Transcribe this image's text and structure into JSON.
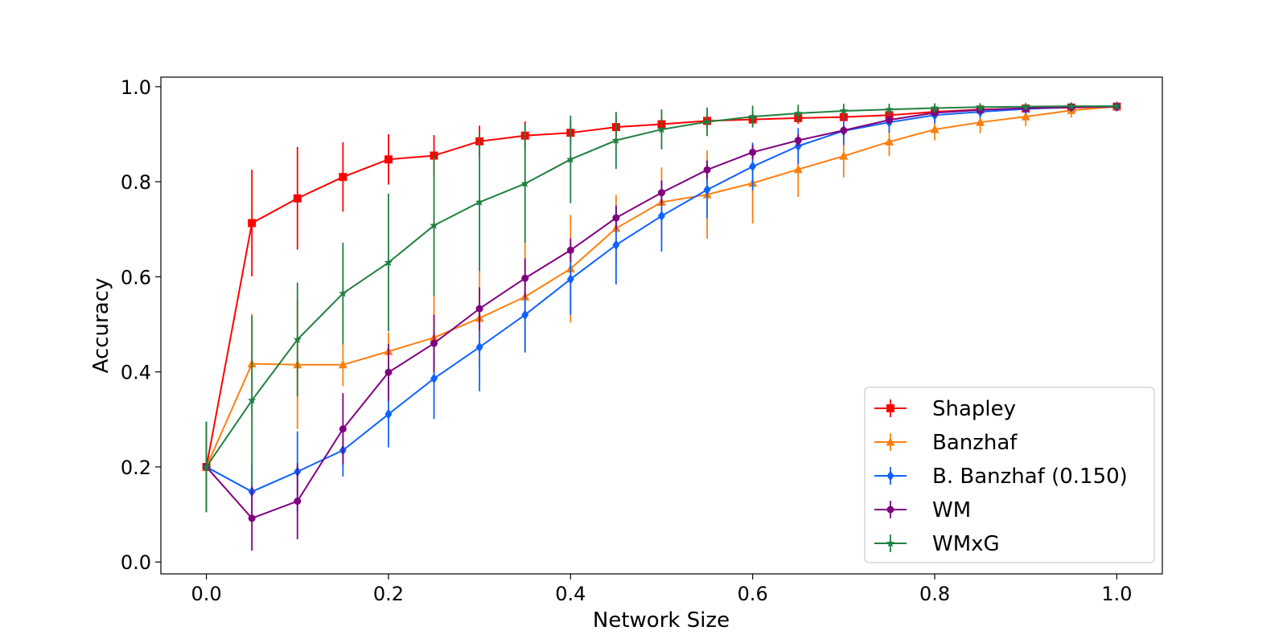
{
  "chart_data": {
    "type": "line",
    "title": "",
    "xlabel": "Network Size",
    "ylabel": "Accuracy",
    "xlim": [
      -0.05,
      1.05
    ],
    "ylim": [
      -0.025,
      1.02
    ],
    "xticks": [
      0.0,
      0.2,
      0.4,
      0.6,
      0.8,
      1.0
    ],
    "xtick_labels": [
      "0.0",
      "0.2",
      "0.4",
      "0.6",
      "0.8",
      "1.0"
    ],
    "yticks": [
      0.0,
      0.2,
      0.4,
      0.6,
      0.8,
      1.0
    ],
    "ytick_labels": [
      "0.0",
      "0.2",
      "0.4",
      "0.6",
      "0.8",
      "1.0"
    ],
    "grid": false,
    "legend_position": "lower-right",
    "x": [
      0.0,
      0.05,
      0.1,
      0.15,
      0.2,
      0.25,
      0.3,
      0.35,
      0.4,
      0.45,
      0.5,
      0.55,
      0.6,
      0.65,
      0.7,
      0.75,
      0.8,
      0.85,
      0.9,
      0.95,
      1.0
    ],
    "series": [
      {
        "name": "Shapley",
        "color": "#ff0000",
        "marker": "square",
        "values": [
          0.2,
          0.713,
          0.765,
          0.81,
          0.847,
          0.855,
          0.885,
          0.897,
          0.903,
          0.915,
          0.921,
          0.928,
          0.931,
          0.934,
          0.936,
          0.94,
          0.947,
          0.952,
          0.954,
          0.956,
          0.958
        ],
        "errors": [
          0.095,
          0.112,
          0.108,
          0.073,
          0.053,
          0.043,
          0.033,
          0.03,
          0.023,
          0.02,
          0.017,
          0.015,
          0.013,
          0.012,
          0.01,
          0.01,
          0.008,
          0.007,
          0.006,
          0.005,
          0.004
        ]
      },
      {
        "name": "Banzhaf",
        "color": "#ff7f0e",
        "marker": "triangle",
        "values": [
          0.2,
          0.417,
          0.415,
          0.415,
          0.443,
          0.472,
          0.513,
          0.558,
          0.617,
          0.702,
          0.757,
          0.773,
          0.797,
          0.826,
          0.854,
          0.884,
          0.91,
          0.925,
          0.937,
          0.95,
          0.958
        ],
        "errors": [
          0.095,
          0.105,
          0.135,
          0.045,
          0.04,
          0.09,
          0.1,
          0.118,
          0.113,
          0.07,
          0.073,
          0.093,
          0.085,
          0.058,
          0.045,
          0.03,
          0.023,
          0.023,
          0.02,
          0.015,
          0.01
        ]
      },
      {
        "name": "B. Banzhaf (0.150)",
        "color": "#0f62fe",
        "marker": "diamond",
        "values": [
          0.2,
          0.148,
          0.19,
          0.235,
          0.311,
          0.386,
          0.452,
          0.52,
          0.595,
          0.667,
          0.728,
          0.783,
          0.832,
          0.875,
          0.907,
          0.925,
          0.94,
          0.947,
          0.953,
          0.957,
          0.958
        ],
        "errors": [
          0.095,
          0.06,
          0.085,
          0.055,
          0.07,
          0.085,
          0.093,
          0.078,
          0.075,
          0.083,
          0.075,
          0.06,
          0.05,
          0.038,
          0.03,
          0.022,
          0.017,
          0.013,
          0.01,
          0.008,
          0.006
        ]
      },
      {
        "name": "WM",
        "color": "#800080",
        "marker": "circle",
        "values": [
          0.2,
          0.092,
          0.128,
          0.28,
          0.399,
          0.46,
          0.533,
          0.597,
          0.656,
          0.724,
          0.777,
          0.825,
          0.862,
          0.887,
          0.908,
          0.93,
          0.945,
          0.951,
          0.955,
          0.957,
          0.958
        ],
        "errors": [
          0.095,
          0.068,
          0.08,
          0.075,
          0.06,
          0.06,
          0.045,
          0.042,
          0.025,
          0.025,
          0.025,
          0.02,
          0.015,
          0.013,
          0.01,
          0.008,
          0.006,
          0.005,
          0.004,
          0.004,
          0.003
        ]
      },
      {
        "name": "WMxG",
        "color": "#1f8041",
        "marker": "star",
        "values": [
          0.2,
          0.34,
          0.468,
          0.565,
          0.63,
          0.708,
          0.757,
          0.796,
          0.847,
          0.887,
          0.91,
          0.926,
          0.937,
          0.944,
          0.949,
          0.952,
          0.955,
          0.957,
          0.958,
          0.959,
          0.959
        ],
        "errors": [
          0.095,
          0.178,
          0.12,
          0.107,
          0.145,
          0.148,
          0.145,
          0.125,
          0.092,
          0.06,
          0.042,
          0.03,
          0.023,
          0.018,
          0.015,
          0.012,
          0.01,
          0.008,
          0.007,
          0.006,
          0.005
        ]
      }
    ]
  }
}
